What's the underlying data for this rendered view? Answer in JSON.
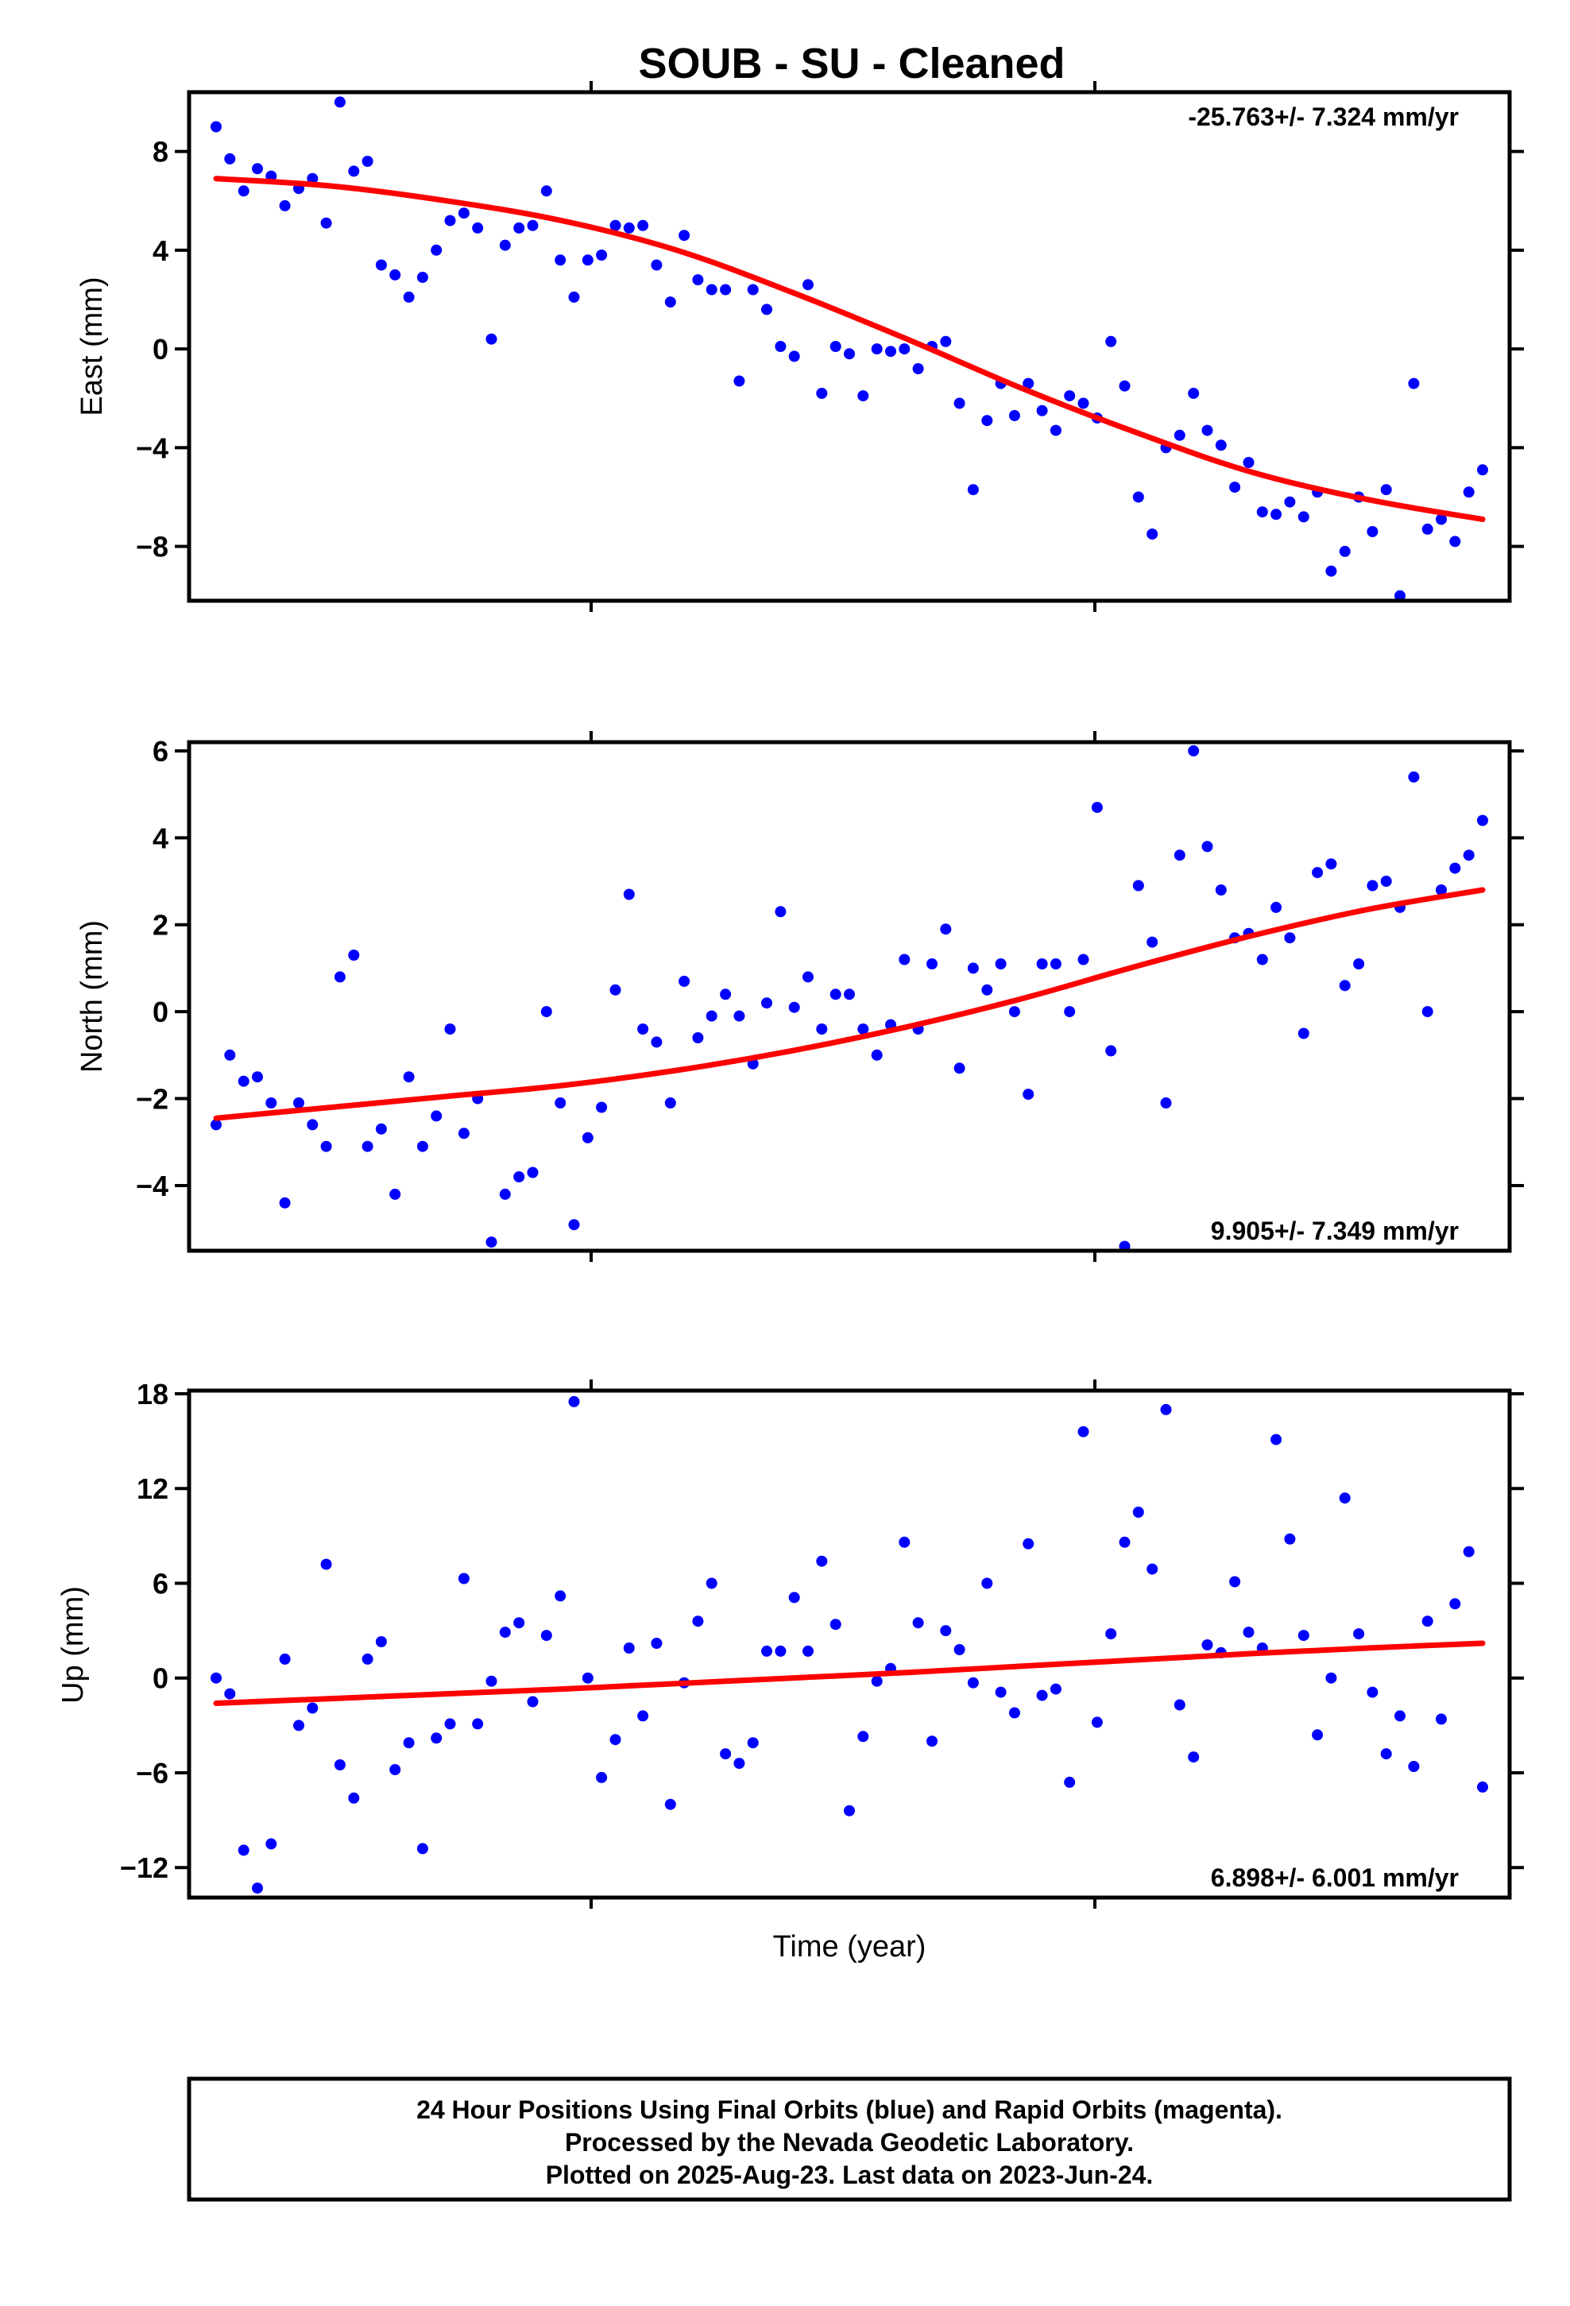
{
  "title": "SOUB  - SU - Cleaned",
  "xlabel": "Time (year)",
  "footer": [
    "24 Hour Positions Using Final Orbits (blue) and Rapid Orbits (magenta).",
    "Processed by the Nevada Geodetic Laboratory.",
    "Plotted on 2025-Aug-23. Last data on 2023-Jun-24."
  ],
  "colors": {
    "points": "#0000ff",
    "trend": "#ff0000",
    "frame": "#000000"
  },
  "chart_data": [
    {
      "type": "scatter",
      "ylabel": "East (mm)",
      "rate_label": "-25.763+/- 7.324 mm/yr",
      "rate_position": "top-right",
      "yticks": [
        8,
        4,
        0,
        -4,
        -8
      ],
      "ylim": [
        -10.2,
        10.4
      ],
      "y": [
        9.0,
        7.7,
        6.4,
        7.3,
        7.0,
        5.8,
        6.5,
        6.9,
        5.1,
        10.0,
        7.2,
        7.6,
        3.4,
        3.0,
        2.1,
        2.9,
        4.0,
        5.2,
        5.5,
        4.9,
        0.4,
        4.2,
        4.9,
        5.0,
        6.4,
        3.6,
        2.1,
        3.6,
        3.8,
        5.0,
        4.9,
        5.0,
        3.4,
        1.9,
        4.6,
        2.8,
        2.4,
        2.4,
        -1.3,
        2.4,
        1.6,
        0.1,
        -0.3,
        2.6,
        -1.8,
        0.1,
        -0.2,
        -1.9,
        0.0,
        -0.1,
        0.0,
        -0.8,
        0.1,
        0.3,
        -2.2,
        -5.7,
        -2.9,
        -1.4,
        -2.7,
        -1.4,
        -2.5,
        -3.3,
        -1.9,
        -2.2,
        -2.8,
        0.3,
        -1.5,
        -6.0,
        -7.5,
        -4.0,
        -3.5,
        -1.8,
        -3.3,
        -3.9,
        -5.6,
        -4.6,
        -6.6,
        -6.7,
        -6.2,
        -6.8,
        -5.8,
        -9.0,
        -8.2,
        -6.0,
        -7.4,
        -5.7,
        -10.0,
        -1.4,
        -7.3,
        -6.9,
        -7.8,
        -5.8,
        -4.9
      ],
      "trend": [
        [
          0,
          6.9
        ],
        [
          0.1,
          6.6
        ],
        [
          0.2,
          6.0
        ],
        [
          0.3,
          5.2
        ],
        [
          0.4,
          4.0
        ],
        [
          0.5,
          2.3
        ],
        [
          0.6,
          0.4
        ],
        [
          0.7,
          -1.6
        ],
        [
          0.8,
          -3.4
        ],
        [
          0.9,
          -5.0
        ],
        [
          1.0,
          -6.1
        ],
        [
          1.1,
          -6.9
        ]
      ]
    },
    {
      "type": "scatter",
      "ylabel": "North (mm)",
      "rate_label": "9.905+/- 7.349 mm/yr",
      "rate_position": "bottom-right",
      "yticks": [
        6,
        4,
        2,
        0,
        -2,
        -4
      ],
      "ylim": [
        -5.5,
        6.2
      ],
      "y": [
        -2.6,
        -1.0,
        -1.6,
        -1.5,
        -2.1,
        -4.4,
        -2.1,
        -2.6,
        -3.1,
        0.8,
        1.3,
        -3.1,
        -2.7,
        -4.2,
        -1.5,
        -3.1,
        -2.4,
        -0.4,
        -2.8,
        -2.0,
        -5.3,
        -4.2,
        -3.8,
        -3.7,
        0.0,
        -2.1,
        -4.9,
        -2.9,
        -2.2,
        0.5,
        2.7,
        -0.4,
        -0.7,
        -2.1,
        0.7,
        -0.6,
        -0.1,
        0.4,
        -0.1,
        -1.2,
        0.2,
        2.3,
        0.1,
        0.8,
        -0.4,
        0.4,
        0.4,
        -0.4,
        -1.0,
        -0.3,
        1.2,
        -0.4,
        1.1,
        1.9,
        -1.3,
        1.0,
        0.5,
        1.1,
        0.0,
        -1.9,
        1.1,
        1.1,
        0.0,
        1.2,
        4.7,
        -0.9,
        -5.4,
        2.9,
        1.6,
        -2.1,
        3.6,
        6.0,
        3.8,
        2.8,
        1.7,
        1.8,
        1.2,
        2.4,
        1.7,
        -0.5,
        3.2,
        3.4,
        0.6,
        1.1,
        2.9,
        3.0,
        2.4,
        5.4,
        0.0,
        2.8,
        3.3,
        3.6,
        4.4
      ],
      "trend": [
        [
          0,
          -2.45
        ],
        [
          0.1,
          -2.2
        ],
        [
          0.2,
          -1.95
        ],
        [
          0.3,
          -1.7
        ],
        [
          0.4,
          -1.35
        ],
        [
          0.5,
          -0.9
        ],
        [
          0.6,
          -0.35
        ],
        [
          0.7,
          0.3
        ],
        [
          0.8,
          1.05
        ],
        [
          0.9,
          1.75
        ],
        [
          1.0,
          2.35
        ],
        [
          1.1,
          2.8
        ]
      ]
    },
    {
      "type": "scatter",
      "ylabel": "Up (mm)",
      "rate_label": "6.898+/- 6.001 mm/yr",
      "rate_position": "bottom-right",
      "yticks": [
        18,
        12,
        6,
        0,
        -6,
        -12
      ],
      "ylim": [
        -13.9,
        18.2
      ],
      "y": [
        0.0,
        -1.0,
        -10.9,
        -13.3,
        -10.5,
        1.2,
        -3.0,
        -1.9,
        7.2,
        -5.5,
        -7.6,
        1.2,
        2.3,
        -5.8,
        -4.1,
        -10.8,
        -3.8,
        -2.9,
        6.3,
        -2.9,
        -0.2,
        2.9,
        3.5,
        -1.5,
        2.7,
        5.2,
        17.5,
        0.0,
        -6.3,
        -3.9,
        1.9,
        -2.4,
        2.2,
        -8.0,
        -0.3,
        3.6,
        6.0,
        -4.8,
        -5.4,
        -4.1,
        1.7,
        1.7,
        5.1,
        1.7,
        7.4,
        3.4,
        -8.4,
        -3.7,
        -0.2,
        0.6,
        8.6,
        3.5,
        -4.0,
        3.0,
        1.8,
        -0.3,
        6.0,
        -0.9,
        -2.2,
        8.5,
        -1.1,
        -0.7,
        -6.6,
        15.6,
        -2.8,
        2.8,
        8.6,
        10.5,
        6.9,
        17.0,
        -1.7,
        -5.0,
        2.1,
        1.6,
        6.1,
        2.9,
        1.9,
        15.1,
        8.8,
        2.7,
        -3.6,
        0.0,
        11.4,
        2.8,
        -0.9,
        -4.8,
        -2.4,
        -5.6,
        3.6,
        -2.6,
        4.7,
        8.0,
        -6.9
      ],
      "trend": [
        [
          0,
          -1.6
        ],
        [
          0.1,
          -1.3
        ],
        [
          0.2,
          -1.0
        ],
        [
          0.3,
          -0.7
        ],
        [
          0.4,
          -0.35
        ],
        [
          0.5,
          0.0
        ],
        [
          0.6,
          0.35
        ],
        [
          0.7,
          0.75
        ],
        [
          0.8,
          1.15
        ],
        [
          0.9,
          1.55
        ],
        [
          1.0,
          1.9
        ],
        [
          1.1,
          2.2
        ]
      ]
    }
  ]
}
